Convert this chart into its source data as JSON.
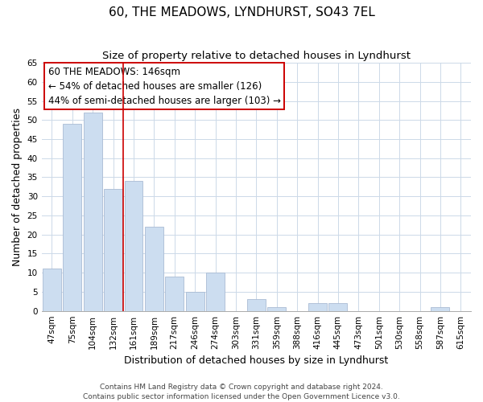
{
  "title": "60, THE MEADOWS, LYNDHURST, SO43 7EL",
  "subtitle": "Size of property relative to detached houses in Lyndhurst",
  "xlabel": "Distribution of detached houses by size in Lyndhurst",
  "ylabel": "Number of detached properties",
  "bar_labels": [
    "47sqm",
    "75sqm",
    "104sqm",
    "132sqm",
    "161sqm",
    "189sqm",
    "217sqm",
    "246sqm",
    "274sqm",
    "303sqm",
    "331sqm",
    "359sqm",
    "388sqm",
    "416sqm",
    "445sqm",
    "473sqm",
    "501sqm",
    "530sqm",
    "558sqm",
    "587sqm",
    "615sqm"
  ],
  "bar_values": [
    11,
    49,
    52,
    32,
    34,
    22,
    9,
    5,
    10,
    0,
    3,
    1,
    0,
    2,
    2,
    0,
    0,
    0,
    0,
    1,
    0
  ],
  "bar_color": "#ccddf0",
  "bar_edge_color": "#aabbd4",
  "vline_index": 3,
  "ylim": [
    0,
    65
  ],
  "yticks": [
    0,
    5,
    10,
    15,
    20,
    25,
    30,
    35,
    40,
    45,
    50,
    55,
    60,
    65
  ],
  "annotation_line1": "60 THE MEADOWS: 146sqm",
  "annotation_line2": "← 54% of detached houses are smaller (126)",
  "annotation_line3": "44% of semi-detached houses are larger (103) →",
  "annotation_box_bg": "#ffffff",
  "annotation_box_edge": "#cc0000",
  "vline_color": "#cc0000",
  "footer_line1": "Contains HM Land Registry data © Crown copyright and database right 2024.",
  "footer_line2": "Contains public sector information licensed under the Open Government Licence v3.0.",
  "bg_color": "#ffffff",
  "grid_color": "#ccd9e8",
  "title_fontsize": 11,
  "subtitle_fontsize": 9.5,
  "axis_label_fontsize": 9,
  "tick_fontsize": 7.5,
  "annotation_fontsize": 8.5,
  "footer_fontsize": 6.5
}
